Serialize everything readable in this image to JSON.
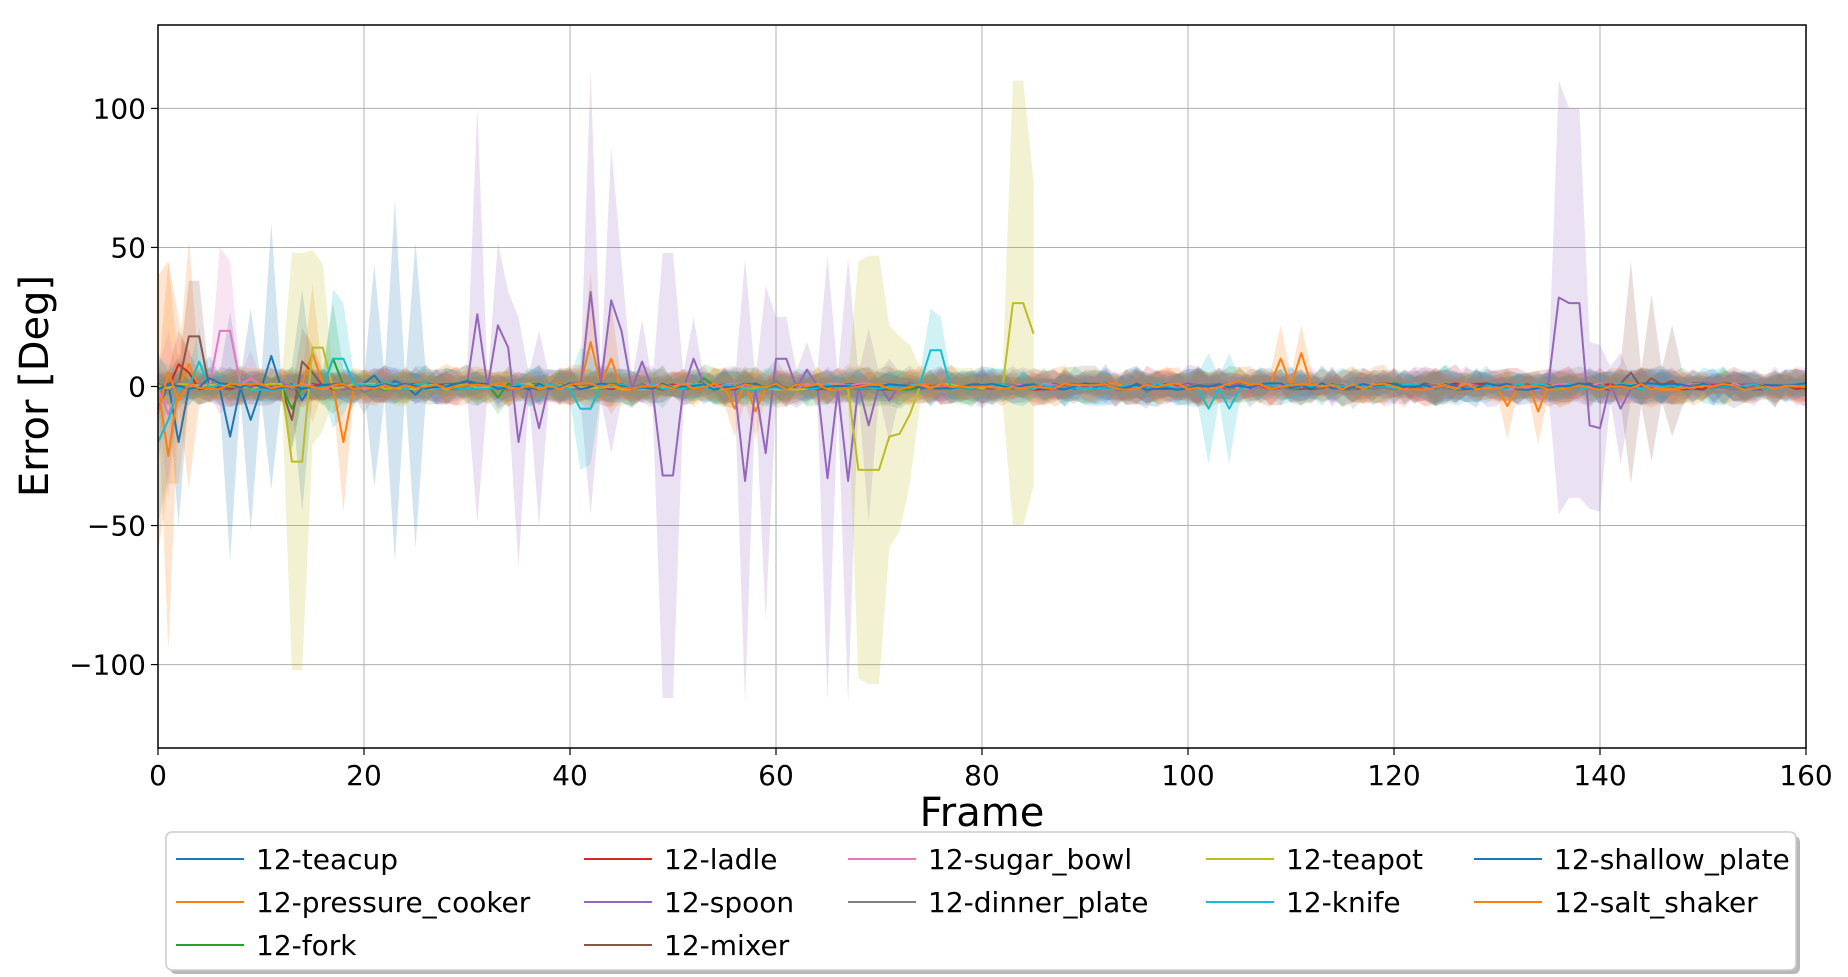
{
  "chart_data": {
    "type": "line",
    "title": "",
    "xlabel": "Frame",
    "ylabel": "Error [Deg]",
    "xlim": [
      0,
      160
    ],
    "ylim": [
      -130,
      130
    ],
    "xticks": [
      0,
      20,
      40,
      60,
      80,
      100,
      120,
      140,
      160
    ],
    "yticks": [
      -100,
      -50,
      0,
      50,
      100
    ],
    "grid": true,
    "legend_position": "bottom",
    "series": [
      {
        "name": "12-teacup",
        "color": "#1f77b4",
        "end": 26,
        "spikes": [
          [
            0,
            -8,
            20
          ],
          [
            2,
            -20,
            30
          ],
          [
            7,
            -18,
            45
          ],
          [
            9,
            -12,
            40
          ],
          [
            11,
            11,
            48
          ],
          [
            14,
            -5,
            40
          ],
          [
            21,
            4,
            40
          ],
          [
            23,
            2,
            65
          ],
          [
            25,
            -3,
            55
          ]
        ]
      },
      {
        "name": "12-pressure_cooker",
        "color": "#ff7f0e",
        "end": 160,
        "spikes": [
          [
            1,
            -25,
            70
          ],
          [
            3,
            8,
            45
          ],
          [
            15,
            12,
            25
          ],
          [
            18,
            -20,
            25
          ],
          [
            42,
            16,
            25
          ],
          [
            44,
            10,
            20
          ],
          [
            56,
            -8,
            10
          ],
          [
            58,
            -9,
            10
          ],
          [
            109,
            10,
            12
          ],
          [
            111,
            12,
            10
          ],
          [
            131,
            -7,
            12
          ],
          [
            134,
            -9,
            12
          ]
        ]
      },
      {
        "name": "12-fork",
        "color": "#2ca02c",
        "end": 160,
        "spikes": [
          [
            13,
            -8,
            15
          ],
          [
            17,
            10,
            20
          ],
          [
            33,
            -4,
            6
          ],
          [
            53,
            3,
            5
          ]
        ]
      },
      {
        "name": "12-ladle",
        "color": "#d62728",
        "end": 160,
        "spikes": [
          [
            2,
            8,
            12
          ],
          [
            3,
            5,
            8
          ]
        ]
      },
      {
        "name": "12-spoon",
        "color": "#9467bd",
        "end": 160,
        "spikes": [
          [
            31,
            26,
            75
          ],
          [
            33,
            22,
            30
          ],
          [
            34,
            14,
            20
          ],
          [
            35,
            -20,
            45
          ],
          [
            37,
            -15,
            35
          ],
          [
            42,
            34,
            80
          ],
          [
            44,
            31,
            55
          ],
          [
            45,
            20,
            25
          ],
          [
            47,
            9,
            15
          ],
          [
            49,
            -32,
            80
          ],
          [
            50,
            -32,
            80
          ],
          [
            52,
            10,
            15
          ],
          [
            57,
            -34,
            80
          ],
          [
            59,
            -24,
            60
          ],
          [
            60,
            10,
            15
          ],
          [
            61,
            10,
            15
          ],
          [
            63,
            6,
            10
          ],
          [
            65,
            -33,
            80
          ],
          [
            67,
            -34,
            80
          ],
          [
            69,
            -14,
            35
          ],
          [
            71,
            -5,
            15
          ],
          [
            136,
            32,
            78
          ],
          [
            137,
            30,
            70
          ],
          [
            138,
            30,
            70
          ],
          [
            139,
            -14,
            30
          ],
          [
            140,
            -15,
            30
          ],
          [
            142,
            -8,
            20
          ]
        ]
      },
      {
        "name": "12-mixer",
        "color": "#8c564b",
        "end": 160,
        "spikes": [
          [
            3,
            18,
            20
          ],
          [
            4,
            18,
            20
          ],
          [
            13,
            -12,
            10
          ],
          [
            14,
            9,
            12
          ],
          [
            15,
            5,
            10
          ],
          [
            143,
            5,
            40
          ],
          [
            145,
            3,
            30
          ],
          [
            147,
            2,
            20
          ]
        ]
      },
      {
        "name": "12-sugar_bowl",
        "color": "#e377c2",
        "end": 160,
        "spikes": [
          [
            1,
            -10,
            30
          ],
          [
            6,
            20,
            30
          ],
          [
            7,
            20,
            25
          ],
          [
            9,
            3,
            10
          ]
        ]
      },
      {
        "name": "12-dinner_plate",
        "color": "#7f7f7f",
        "end": 160,
        "spikes": [
          [
            2,
            2,
            10
          ],
          [
            20,
            -2,
            8
          ],
          [
            60,
            2,
            8
          ],
          [
            96,
            -2,
            6
          ]
        ]
      },
      {
        "name": "12-teapot",
        "color": "#bcbd22",
        "end": 85,
        "spikes": [
          [
            13,
            -27,
            75
          ],
          [
            14,
            -27,
            75
          ],
          [
            15,
            14,
            35
          ],
          [
            16,
            14,
            30
          ],
          [
            68,
            -30,
            75
          ],
          [
            69,
            -30,
            77
          ],
          [
            70,
            -30,
            77
          ],
          [
            71,
            -18,
            40
          ],
          [
            72,
            -17,
            35
          ],
          [
            73,
            -10,
            25
          ],
          [
            83,
            30,
            80
          ],
          [
            84,
            30,
            80
          ],
          [
            85,
            19,
            55
          ]
        ]
      },
      {
        "name": "12-knife",
        "color": "#17becf",
        "end": 160,
        "spikes": [
          [
            0,
            -20,
            30
          ],
          [
            1,
            -12,
            20
          ],
          [
            4,
            9,
            12
          ],
          [
            17,
            10,
            25
          ],
          [
            18,
            10,
            20
          ],
          [
            41,
            -8,
            22
          ],
          [
            42,
            -8,
            20
          ],
          [
            75,
            13,
            15
          ],
          [
            76,
            13,
            12
          ],
          [
            102,
            -8,
            20
          ],
          [
            104,
            -8,
            20
          ]
        ]
      },
      {
        "name": "12-shallow_plate",
        "color": "#1f77b4",
        "end": 160,
        "spikes": [
          [
            5,
            3,
            8
          ],
          [
            30,
            2,
            6
          ],
          [
            150,
            1,
            4
          ]
        ]
      },
      {
        "name": "12-salt_shaker",
        "color": "#ff7f0e",
        "end": 160,
        "spikes": [
          [
            0,
            -10,
            50
          ],
          [
            1,
            5,
            40
          ],
          [
            2,
            -5,
            30
          ],
          [
            105,
            2,
            5
          ]
        ]
      }
    ]
  }
}
